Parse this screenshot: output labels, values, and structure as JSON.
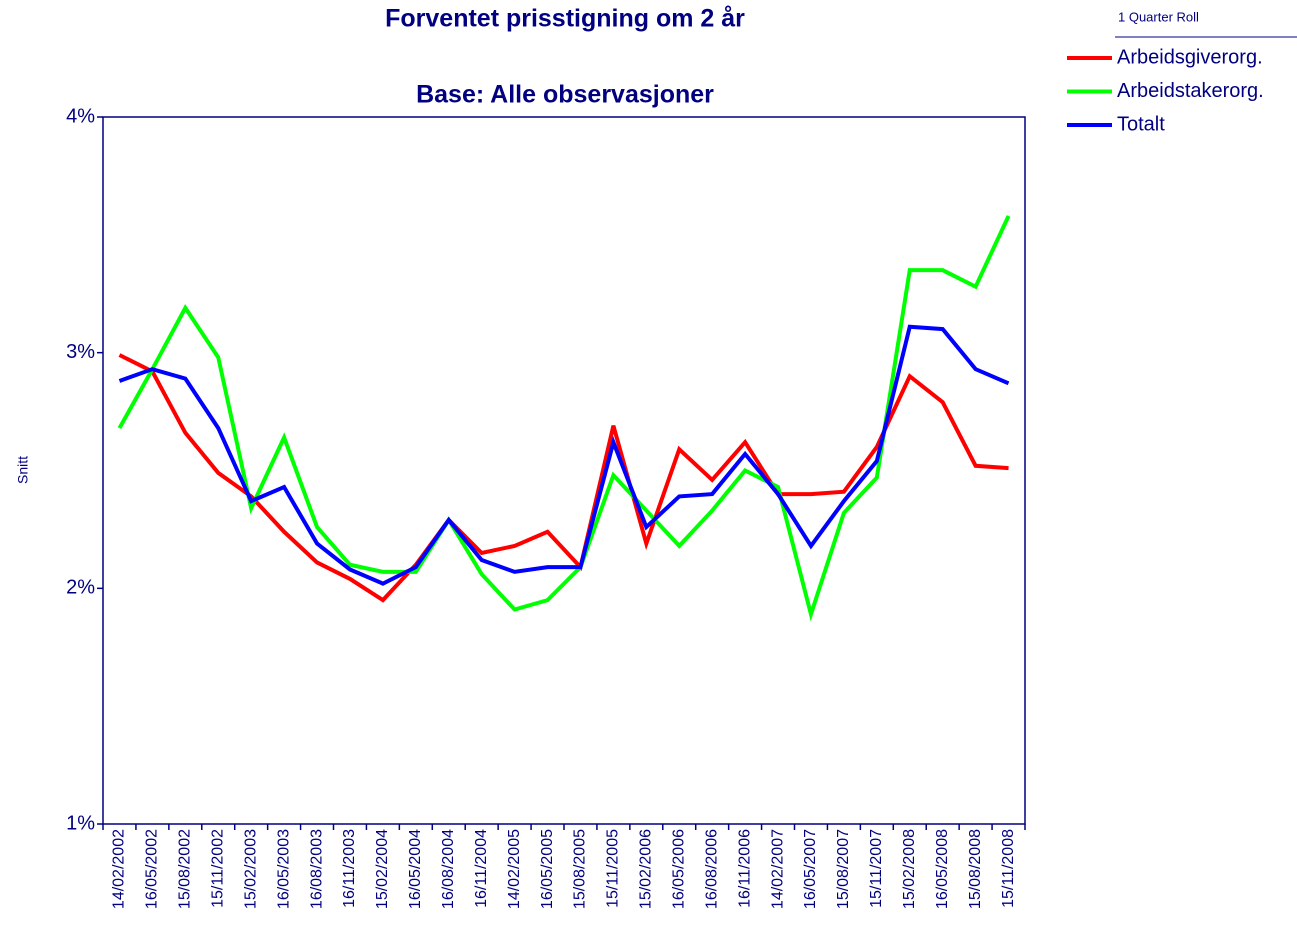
{
  "chart_data": {
    "type": "line",
    "title": "Forventet prisstigning om 2 år",
    "subtitle": "Base: Alle observasjoner",
    "y_label": "Snitt",
    "legend_title": "1 Quarter Roll",
    "legend": "top-right",
    "categories": [
      "14/02/2002",
      "16/05/2002",
      "15/08/2002",
      "15/11/2002",
      "15/02/2003",
      "16/05/2003",
      "16/08/2003",
      "16/11/2003",
      "15/02/2004",
      "16/05/2004",
      "16/08/2004",
      "16/11/2004",
      "14/02/2005",
      "16/05/2005",
      "15/08/2005",
      "15/11/2005",
      "15/02/2006",
      "16/05/2006",
      "16/08/2006",
      "16/11/2006",
      "14/02/2007",
      "16/05/2007",
      "15/08/2007",
      "15/11/2007",
      "15/02/2008",
      "16/05/2008",
      "15/08/2008",
      "15/11/2008"
    ],
    "series": [
      {
        "name": "Arbeidsgiverorg.",
        "color": "#ff0000",
        "values": [
          2.99,
          2.92,
          2.66,
          2.49,
          2.39,
          2.24,
          2.11,
          2.04,
          1.95,
          2.1,
          2.29,
          2.15,
          2.18,
          2.24,
          2.09,
          2.69,
          2.19,
          2.59,
          2.46,
          2.62,
          2.4,
          2.4,
          2.41,
          2.6,
          2.9,
          2.79,
          2.52,
          2.51
        ]
      },
      {
        "name": "Arbeidstakerorg.",
        "color": "#00ff00",
        "values": [
          2.68,
          2.93,
          3.19,
          2.98,
          2.34,
          2.64,
          2.26,
          2.1,
          2.07,
          2.07,
          2.29,
          2.06,
          1.91,
          1.95,
          2.09,
          2.48,
          2.33,
          2.18,
          2.33,
          2.5,
          2.43,
          1.89,
          2.32,
          2.47,
          3.35,
          3.35,
          3.28,
          3.58
        ]
      },
      {
        "name": "Totalt",
        "color": "#0000ff",
        "values": [
          2.88,
          2.93,
          2.89,
          2.68,
          2.37,
          2.43,
          2.19,
          2.08,
          2.02,
          2.09,
          2.29,
          2.12,
          2.07,
          2.09,
          2.09,
          2.62,
          2.26,
          2.39,
          2.4,
          2.57,
          2.4,
          2.18,
          2.37,
          2.54,
          3.11,
          3.1,
          2.93,
          2.87
        ]
      }
    ],
    "ylim": [
      1,
      4
    ],
    "yticks": [
      {
        "value": 1,
        "label": "1%"
      },
      {
        "value": 2,
        "label": "2%"
      },
      {
        "value": 3,
        "label": "3%"
      },
      {
        "value": 4,
        "label": "4%"
      }
    ]
  }
}
